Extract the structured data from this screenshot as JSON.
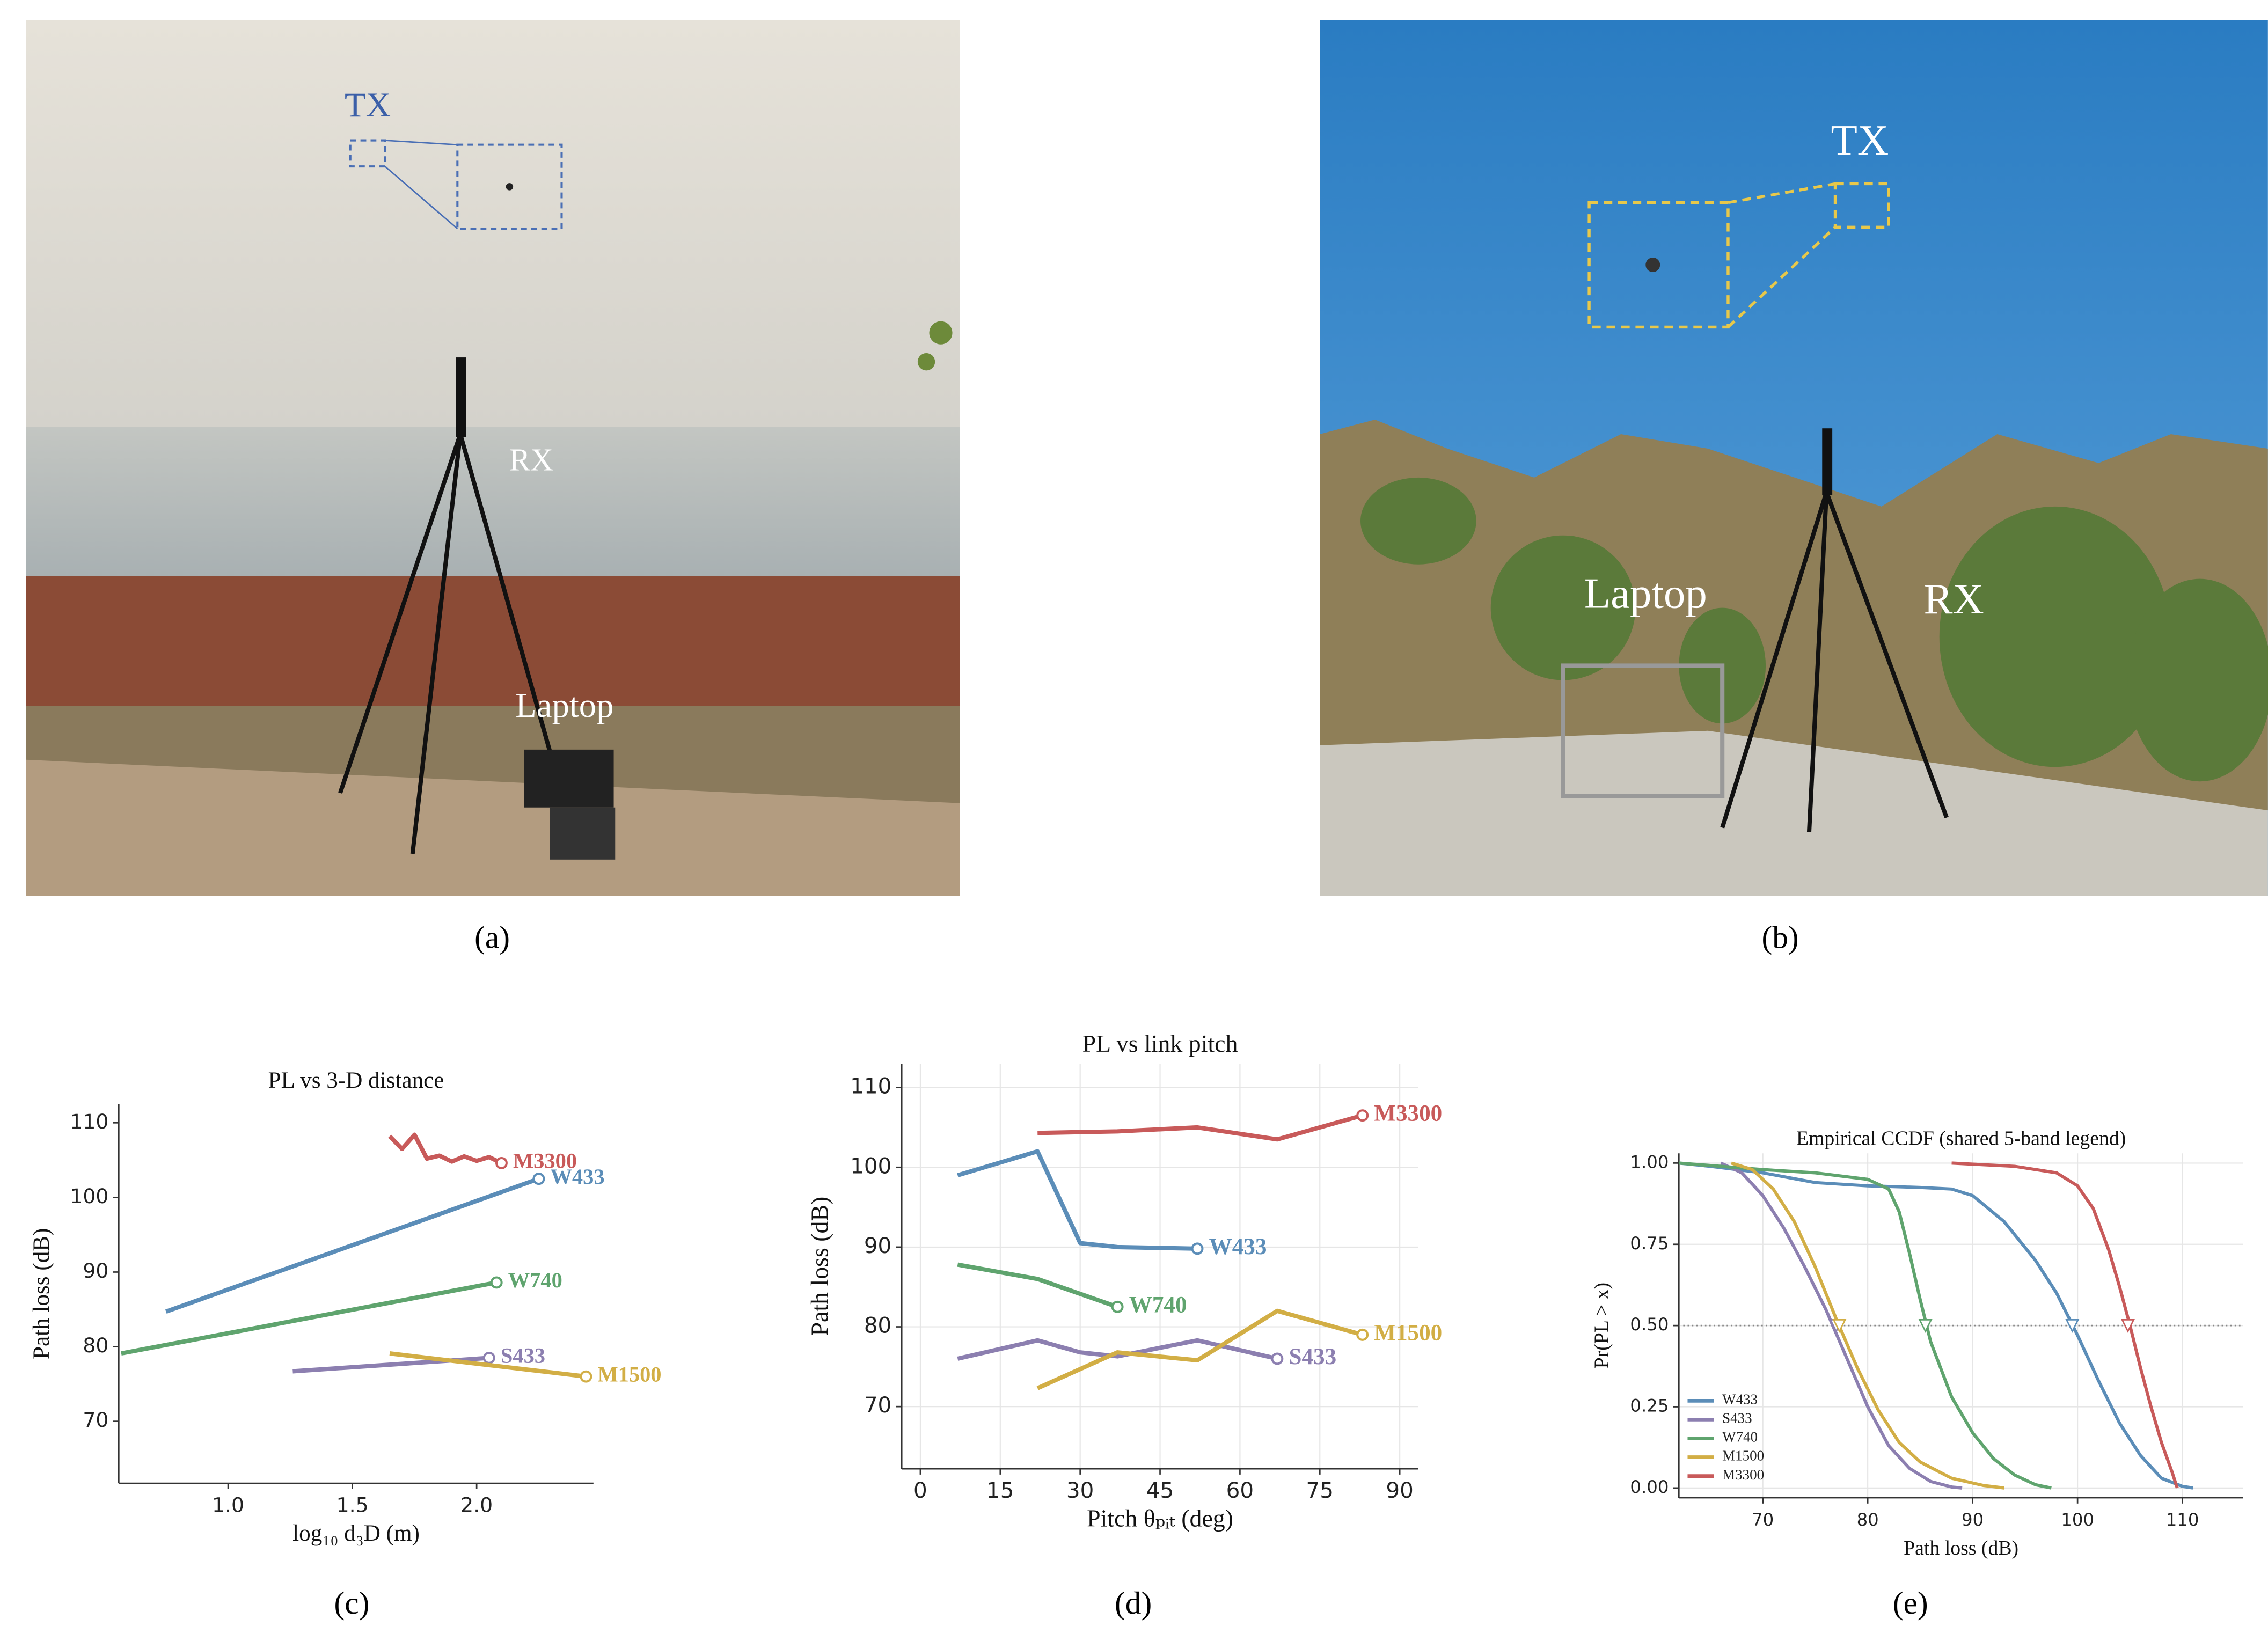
{
  "figure": {
    "panel_labels": [
      "(a)",
      "(b)",
      "(c)",
      "(d)",
      "(e)"
    ],
    "photo_a": {
      "tx": "TX",
      "rx": "RX",
      "laptop": "Laptop"
    },
    "photo_b": {
      "tx": "TX",
      "rx": "RX",
      "laptop": "Laptop"
    }
  },
  "chart_data": [
    {
      "type": "line",
      "title": "PL vs 3-D distance",
      "x_label": "log₁₀ d₃D  (m)",
      "y_label": "Path loss (dB)",
      "xlim": [
        0.56,
        2.47
      ],
      "ylim": [
        61.7,
        112.5
      ],
      "xticks": [
        {
          "value": 1,
          "label": "1.0"
        },
        {
          "value": 1.5,
          "label": "1.5"
        },
        {
          "value": 2,
          "label": "2.0"
        }
      ],
      "yticks": [
        70,
        80,
        90,
        100,
        110
      ],
      "grid": false,
      "end_labels": true,
      "series": [
        {
          "name": "W433",
          "color": "#5b8db8",
          "x": [
            0.75,
            2.25
          ],
          "values": [
            84.7,
            102.5
          ]
        },
        {
          "name": "S433",
          "color": "#8c7fb0",
          "x": [
            1.26,
            2.05
          ],
          "values": [
            76.7,
            78.5
          ]
        },
        {
          "name": "W740",
          "color": "#5fa46e",
          "x": [
            0.57,
            2.08
          ],
          "values": [
            79.1,
            88.6
          ]
        },
        {
          "name": "M1500",
          "color": "#d2ae45",
          "x": [
            1.65,
            2.44
          ],
          "values": [
            79.1,
            76.0
          ]
        },
        {
          "name": "M3300",
          "color": "#c85a5a",
          "x": [
            1.65,
            1.7,
            1.75,
            1.8,
            1.85,
            1.9,
            1.95,
            2.0,
            2.05,
            2.1
          ],
          "values": [
            108.2,
            106.5,
            108.4,
            105.2,
            105.6,
            104.8,
            105.5,
            104.9,
            105.4,
            104.6
          ]
        }
      ]
    },
    {
      "type": "line",
      "title": "PL vs link pitch",
      "x_label": "Pitch θₚᵢₜ  (deg)",
      "y_label": "Path loss (dB)",
      "xlim": [
        -3.5,
        93.5
      ],
      "ylim": [
        62.2,
        113
      ],
      "xticks": [
        0,
        15,
        30,
        45,
        60,
        75,
        90
      ],
      "yticks": [
        70,
        80,
        90,
        100,
        110
      ],
      "grid": true,
      "end_labels": true,
      "series": [
        {
          "name": "W433",
          "color": "#5b8db8",
          "x": [
            7,
            22,
            30,
            37,
            52
          ],
          "values": [
            99,
            102,
            90.5,
            90,
            89.8
          ]
        },
        {
          "name": "S433",
          "color": "#8c7fb0",
          "x": [
            7,
            22,
            30,
            37,
            52,
            67
          ],
          "values": [
            76,
            78.3,
            76.8,
            76.3,
            78.3,
            76
          ]
        },
        {
          "name": "W740",
          "color": "#5fa46e",
          "x": [
            7,
            22,
            37
          ],
          "values": [
            87.8,
            86,
            82.5
          ]
        },
        {
          "name": "M1500",
          "color": "#d2ae45",
          "x": [
            22,
            37,
            52,
            67,
            83
          ],
          "values": [
            72.3,
            76.8,
            75.8,
            82,
            79
          ]
        },
        {
          "name": "M3300",
          "color": "#c85a5a",
          "x": [
            22,
            37,
            52,
            67,
            83
          ],
          "values": [
            104.3,
            104.5,
            105,
            103.5,
            106.5
          ]
        }
      ]
    },
    {
      "type": "line",
      "title": "Empirical CCDF (shared 5-band legend)",
      "x_label": "Path loss (dB)",
      "y_label": "Pr(PL > x)",
      "xlim": [
        62,
        115.8
      ],
      "ylim": [
        -0.03,
        1.03
      ],
      "xticks": [
        70,
        80,
        90,
        100,
        110
      ],
      "yticks": [
        {
          "value": 0,
          "label": "0.00"
        },
        {
          "value": 0.25,
          "label": "0.25"
        },
        {
          "value": 0.5,
          "label": "0.50"
        },
        {
          "value": 0.75,
          "label": "0.75"
        },
        {
          "value": 1,
          "label": "1.00"
        }
      ],
      "grid": true,
      "legend": "lower left",
      "hline": 0.5,
      "series": [
        {
          "name": "W433",
          "color": "#5b8db8",
          "median": 99.5,
          "x": [
            62,
            65,
            70,
            75,
            80,
            85,
            88,
            90,
            93,
            96,
            98,
            100,
            102,
            104,
            106,
            108,
            110,
            111
          ],
          "values": [
            1,
            0.99,
            0.97,
            0.94,
            0.93,
            0.925,
            0.92,
            0.9,
            0.82,
            0.7,
            0.6,
            0.47,
            0.33,
            0.2,
            0.1,
            0.03,
            0.005,
            0
          ]
        },
        {
          "name": "S433",
          "color": "#8c7fb0",
          "median": 77,
          "x": [
            66,
            68,
            70,
            72,
            74,
            76,
            78,
            80,
            82,
            84,
            86,
            88,
            89
          ],
          "values": [
            1,
            0.97,
            0.9,
            0.8,
            0.68,
            0.55,
            0.4,
            0.25,
            0.13,
            0.06,
            0.02,
            0.003,
            0
          ]
        },
        {
          "name": "W740",
          "color": "#5fa46e",
          "median": 85.5,
          "x": [
            62,
            70,
            75,
            80,
            82,
            83,
            84,
            85,
            86,
            88,
            90,
            92,
            94,
            96,
            97.5
          ],
          "values": [
            1,
            0.98,
            0.97,
            0.95,
            0.92,
            0.85,
            0.72,
            0.58,
            0.45,
            0.28,
            0.17,
            0.09,
            0.04,
            0.01,
            0
          ]
        },
        {
          "name": "M1500",
          "color": "#d2ae45",
          "median": 77.3,
          "x": [
            67,
            69,
            71,
            73,
            75,
            77,
            79,
            81,
            83,
            85,
            88,
            91,
            93
          ],
          "values": [
            1,
            0.98,
            0.92,
            0.82,
            0.68,
            0.52,
            0.37,
            0.24,
            0.14,
            0.08,
            0.03,
            0.008,
            0
          ]
        },
        {
          "name": "M3300",
          "color": "#c85a5a",
          "median": 104.8,
          "x": [
            88,
            94,
            98,
            100,
            101.5,
            103,
            104,
            105,
            106,
            107,
            108,
            109,
            109.5
          ],
          "values": [
            1,
            0.99,
            0.97,
            0.93,
            0.86,
            0.73,
            0.62,
            0.5,
            0.37,
            0.25,
            0.14,
            0.05,
            0
          ]
        }
      ]
    }
  ]
}
